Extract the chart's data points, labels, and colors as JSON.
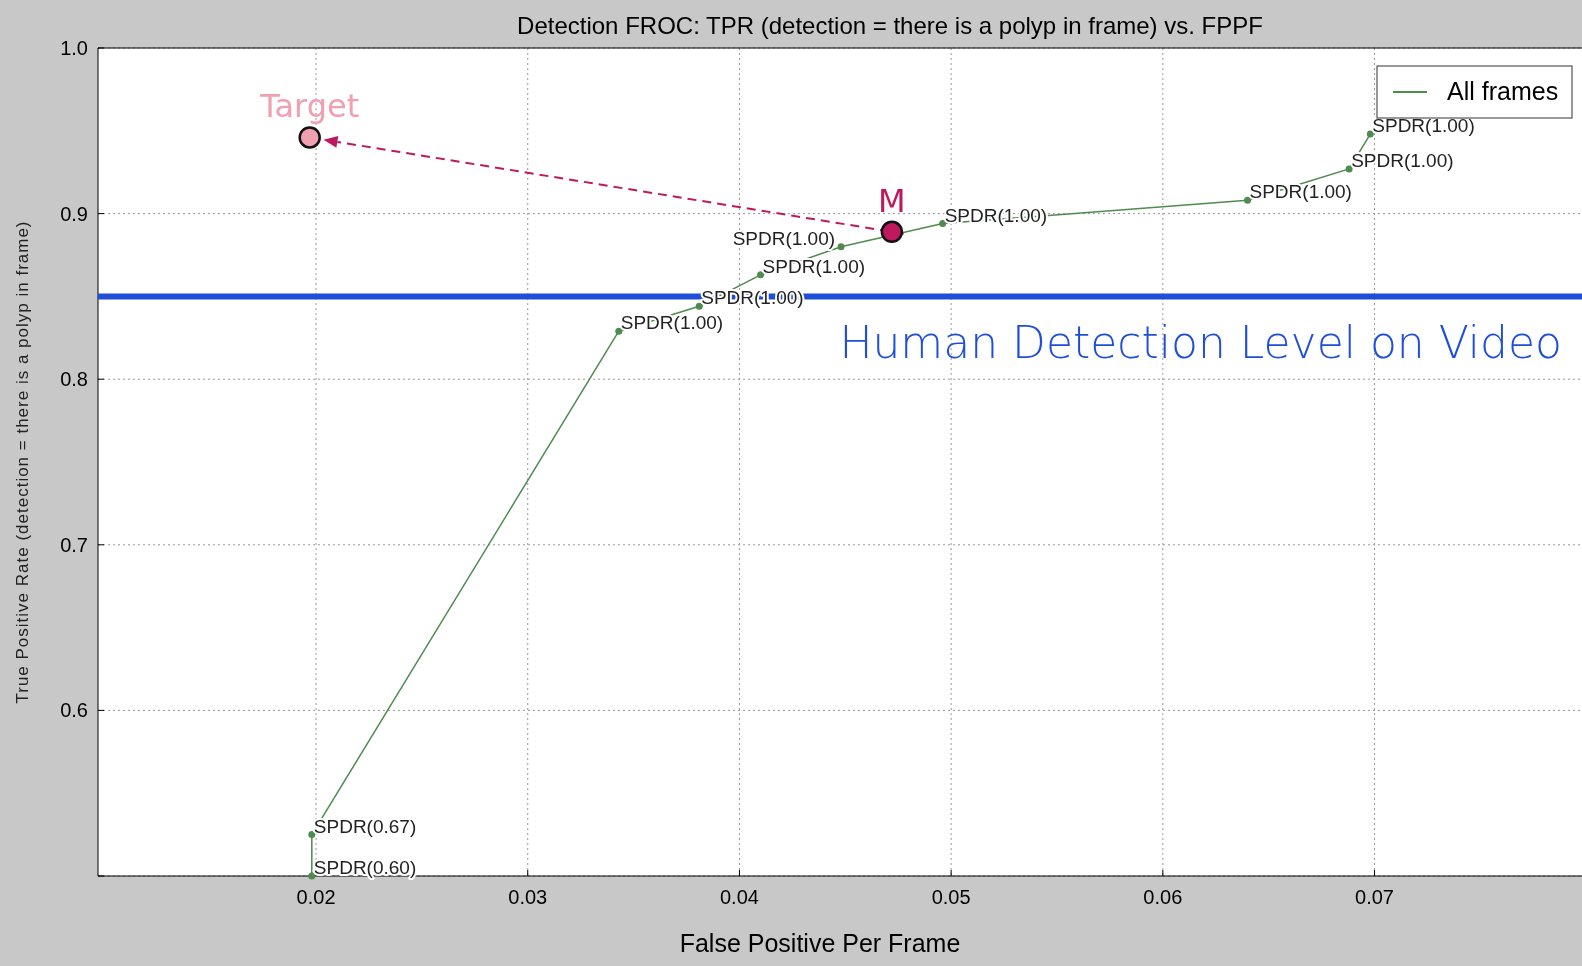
{
  "chart_data": {
    "type": "line",
    "title": "Detection FROC: TPR (detection = there is a polyp in frame) vs. FPPF",
    "xlabel": "False Positive Per Frame",
    "ylabel": "True Positive Rate (detection = there is a polyp in frame)",
    "xlim": [
      0.0097,
      0.0798
    ],
    "xticks": [
      0.02,
      0.03,
      0.04,
      0.05,
      0.06,
      0.07
    ],
    "ylim": [
      0.5,
      1.0
    ],
    "yticks": [
      {
        "value": 0.5,
        "label": null
      },
      0.6,
      0.7,
      0.8,
      0.9,
      "1.0"
    ],
    "grid": true,
    "legend": "top right",
    "marker": "circle",
    "line_style": "solid",
    "series": [
      {
        "name": "All frames",
        "color": "#4f8a4f",
        "x": [
          0.0198,
          0.0198,
          0.0343,
          0.0381,
          0.041,
          0.0448,
          0.0496,
          0.064,
          0.0688,
          0.0698
        ],
        "values": [
          0.5,
          0.525,
          0.829,
          0.844,
          0.863,
          0.88,
          0.894,
          0.908,
          0.927,
          0.948
        ]
      },
      {
        "name": "Target",
        "type": "scatter",
        "color": "#f0a0b0",
        "x": [
          0.0197
        ],
        "values": [
          0.946
        ]
      },
      {
        "name": "M",
        "type": "scatter",
        "color": "#c0185e",
        "x": [
          0.0472
        ],
        "values": [
          0.889
        ]
      }
    ],
    "ref_lines": [
      {
        "axis": "y",
        "value": 0.85,
        "label": "Human Detection Level on Video",
        "color": "#1f4fd8"
      }
    ],
    "annotations": [
      {
        "text": "SPDR(0.60)",
        "x": 0.0198,
        "y": 0.5
      },
      {
        "text": "SPDR(0.67)",
        "x": 0.0198,
        "y": 0.525
      },
      {
        "text": "SPDR(1.00)",
        "x": 0.0343,
        "y": 0.829
      },
      {
        "text": "SPDR(1.00)",
        "x": 0.0381,
        "y": 0.844
      },
      {
        "text": "SPDR(1.00)",
        "x": 0.041,
        "y": 0.863
      },
      {
        "text": "SPDR(1.00)",
        "x": 0.0448,
        "y": 0.88
      },
      {
        "text": "SPDR(1.00)",
        "x": 0.0496,
        "y": 0.894
      },
      {
        "text": "SPDR(1.00)",
        "x": 0.064,
        "y": 0.908
      },
      {
        "text": "SPDR(1.00)",
        "x": 0.0688,
        "y": 0.927
      },
      {
        "text": "SPDR(1.00)",
        "x": 0.0698,
        "y": 0.948
      }
    ]
  }
}
